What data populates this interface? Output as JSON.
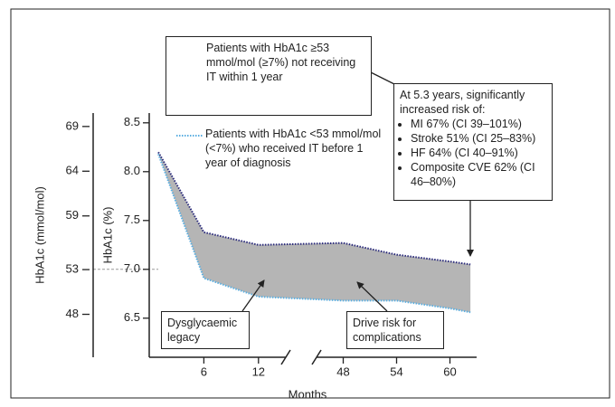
{
  "chart_data": {
    "type": "line",
    "x_label": "Months",
    "y_label": "HbA1c (%)",
    "y2_label": "HbA1c (mmol/mol)",
    "x": [
      1,
      6,
      12,
      48,
      54,
      60,
      62.3
    ],
    "xlim": [
      0,
      63
    ],
    "xbreak": [
      15,
      45
    ],
    "xticks": [
      6,
      12,
      48,
      54,
      60
    ],
    "ylim": [
      6.1,
      8.6
    ],
    "yticks": [
      6.5,
      {
        "value": 7,
        "label": "7.0"
      },
      7.5,
      {
        "value": 8,
        "label": "8.0"
      },
      8.5
    ],
    "y2lim": [
      43.2,
      70.5
    ],
    "y2ticks": [
      48,
      53,
      59,
      64,
      69
    ],
    "reference_y": 7,
    "fill_between": true,
    "fill_color": "#b5b5b5",
    "series": [
      {
        "name": "Patients with HbA1c ≥53 mmol/mol (≥7%) not receiving IT within 1 year",
        "color": "#2b2b7c",
        "values": [
          8.2,
          7.38,
          7.25,
          7.27,
          7.15,
          7.08,
          7.05
        ]
      },
      {
        "name": "Patients with HbA1c <53 mmol/mol (<7%) who received IT before 1 year of diagnosis",
        "color": "#5aaee0",
        "values": [
          8.18,
          6.91,
          6.72,
          6.68,
          6.68,
          6.6,
          6.56
        ]
      }
    ],
    "annotations": {
      "risk_title": "At 5.3 years, significantly increased risk of:",
      "risk_items": [
        "MI 67% (CI 39–101%)",
        "Stroke 51% (CI 25–83%)",
        "HF 64% (CI 40–91%)",
        "Composite CVE 62% (CI 46–80%)"
      ],
      "legacy": "Dysglycaemic legacy",
      "drive": "Drive risk for complications"
    }
  }
}
